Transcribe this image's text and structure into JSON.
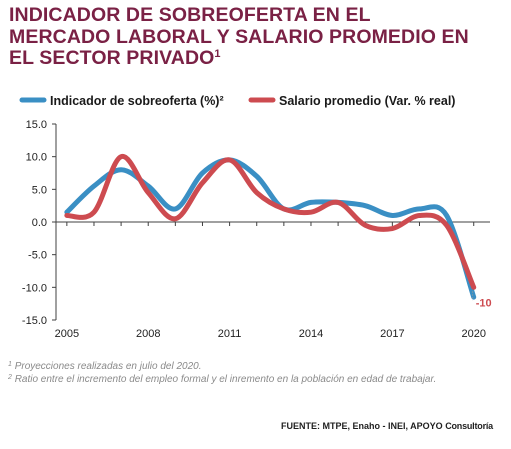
{
  "title": {
    "line1": "INDICADOR DE SOBREOFERTA EN EL",
    "line2": "MERCADO LABORAL Y SALARIO PROMEDIO EN",
    "line3": "EL SECTOR PRIVADO",
    "marker": "1"
  },
  "notes": {
    "note1_marker": "1",
    "note1_text": "Proyecciones realizadas en julio del 2020.",
    "note2_marker": "2",
    "note2_text": "Ratio entre el incremento del empleo formal y el inremento en la población en edad de trabajar."
  },
  "source": {
    "label": "FUENTE: MTPE, Enaho - INEI, APOYO",
    "suffix": "Consultoría"
  },
  "chart_data": {
    "type": "line",
    "x": [
      2005,
      2006,
      2007,
      2008,
      2009,
      2010,
      2011,
      2012,
      2013,
      2014,
      2015,
      2016,
      2017,
      2018,
      2019,
      2020
    ],
    "x_ticks": [
      "2005",
      "2008",
      "2011",
      "2014",
      "2017",
      "2020"
    ],
    "xlim": [
      2004.6,
      2020.6
    ],
    "ylim": [
      -15,
      15
    ],
    "y_ticks": [
      "15.0",
      "10.0",
      "5.0",
      "0.0",
      "-5.0",
      "-10.0",
      "-15.0"
    ],
    "grid": false,
    "legend": "top",
    "series": [
      {
        "name": "Indicador de sobreoferta (%)²",
        "color": "#3a8fc4",
        "values": [
          1.5,
          5.5,
          8.0,
          5.5,
          2.0,
          7.5,
          9.5,
          7.0,
          2.0,
          3.0,
          3.0,
          2.5,
          1.0,
          2.0,
          1.0,
          -11.5
        ]
      },
      {
        "name": "Salario promedio (Var. % real)",
        "color": "#cd4b50",
        "values": [
          1.0,
          1.5,
          10.0,
          4.5,
          0.5,
          6.0,
          9.5,
          4.5,
          2.0,
          1.5,
          3.0,
          -0.5,
          -1.0,
          1.0,
          -0.5,
          -10.0
        ]
      }
    ],
    "annotations": [
      {
        "text": "-10",
        "color": "#cd4b50",
        "x": 2020,
        "y": -12.3
      }
    ]
  }
}
